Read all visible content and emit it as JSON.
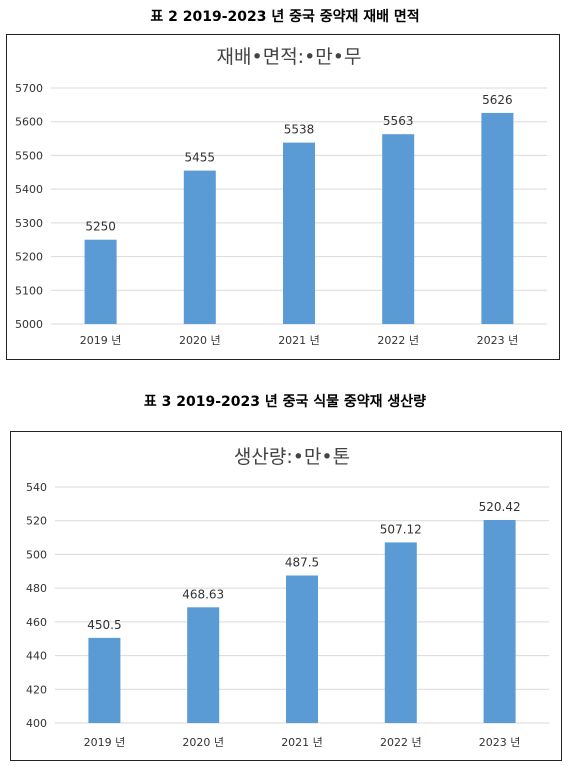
{
  "tables": [
    {
      "caption": "표 2   2019-2023 년 중국 중약재 재배 면적",
      "chart_data": {
        "type": "bar",
        "title": "재배•면적:•만•무",
        "categories": [
          "2019 년",
          "2020 년",
          "2021 년",
          "2022 년",
          "2023 년"
        ],
        "values": [
          5250,
          5455,
          5538,
          5563,
          5626
        ],
        "value_labels": [
          "5250",
          "5455",
          "5538",
          "5563",
          "5626"
        ],
        "ylim": [
          5000,
          5700
        ],
        "yticks": [
          5000,
          5100,
          5200,
          5300,
          5400,
          5500,
          5600,
          5700
        ],
        "xlabel": "",
        "ylabel": "",
        "grid": true,
        "bar_color": "#5b9bd5"
      }
    },
    {
      "caption": "표 3   2019-2023 년 중국 식물 중약재 생산량",
      "chart_data": {
        "type": "bar",
        "title": "생산량:•만•톤",
        "categories": [
          "2019 년",
          "2020 년",
          "2021 년",
          "2022 년",
          "2023 년"
        ],
        "values": [
          450.5,
          468.63,
          487.5,
          507.12,
          520.42
        ],
        "value_labels": [
          "450.5",
          "468.63",
          "487.5",
          "507.12",
          "520.42"
        ],
        "ylim": [
          400,
          540
        ],
        "yticks": [
          400,
          420,
          440,
          460,
          480,
          500,
          520,
          540
        ],
        "xlabel": "",
        "ylabel": "",
        "grid": true,
        "bar_color": "#5b9bd5"
      }
    }
  ]
}
